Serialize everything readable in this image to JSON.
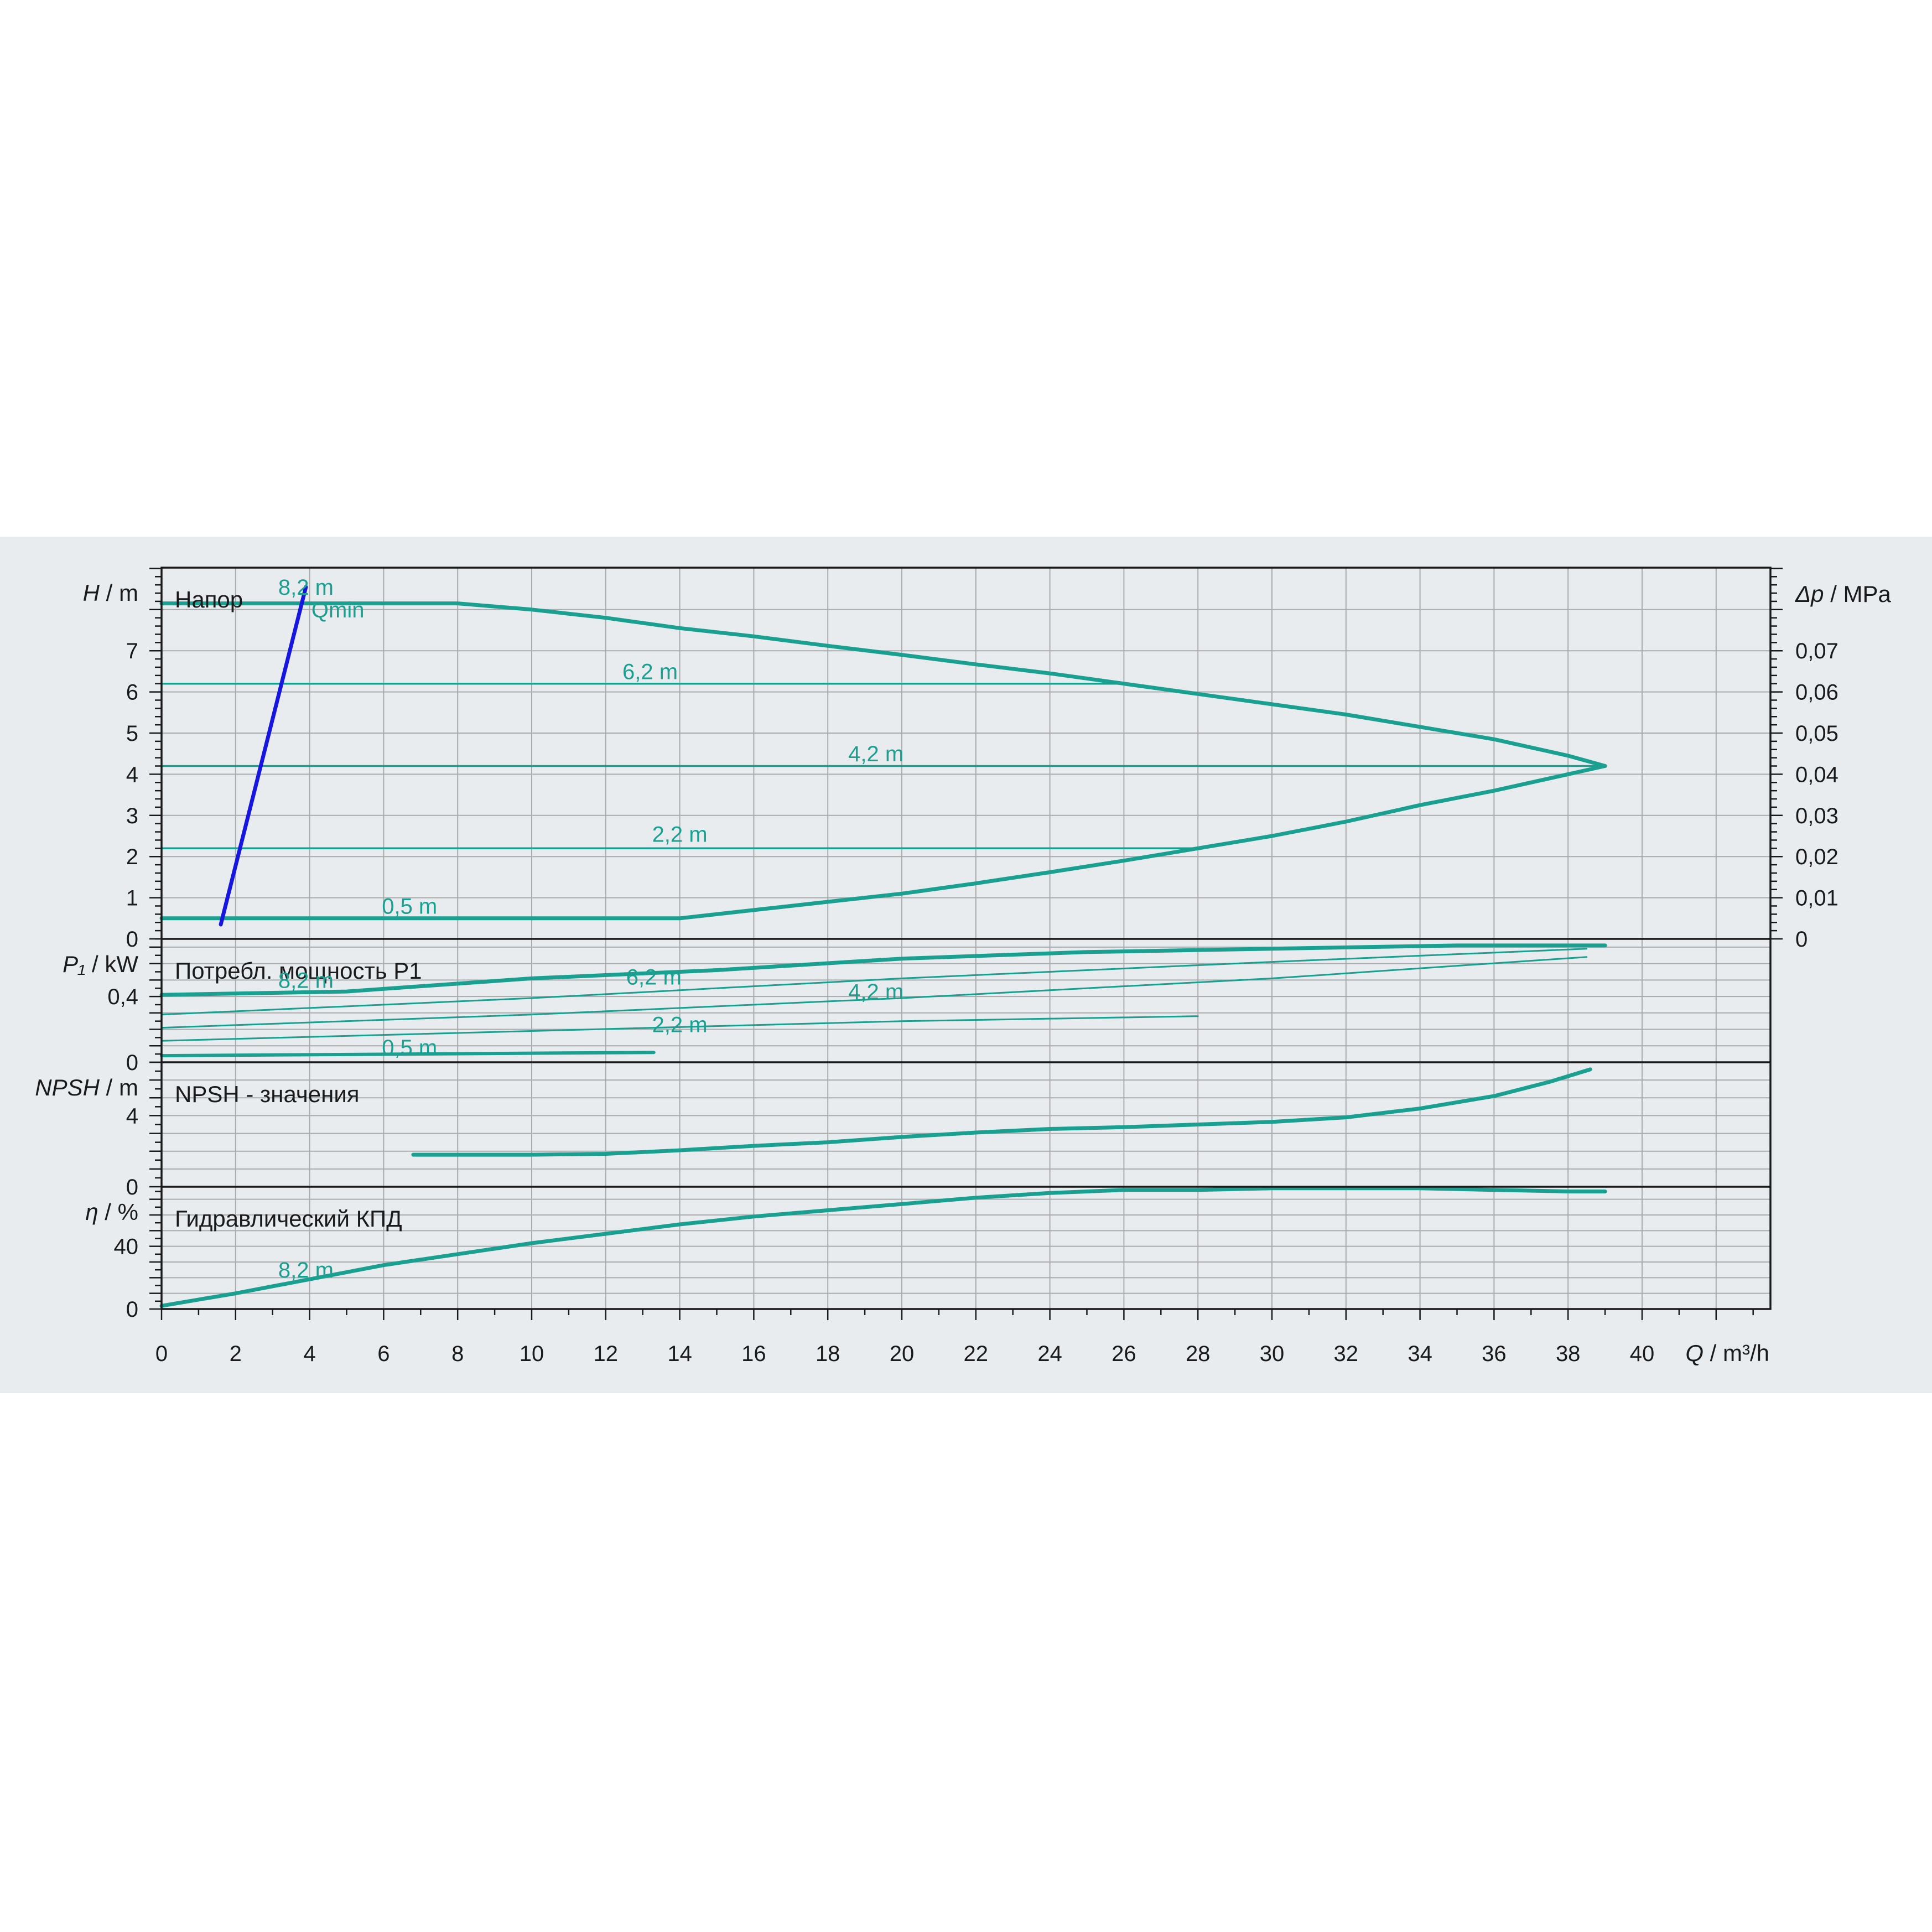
{
  "colors": {
    "curve": "#1aa091",
    "qmin": "#1616e0",
    "grid": "#a9abad",
    "frame": "#1a1a1a",
    "band": "#e9ecef"
  },
  "chart_data": {
    "type": "line",
    "x_label": {
      "sym": "Q",
      "unit": " / m³/h"
    },
    "x_range": [
      0,
      43.5
    ],
    "x_ticks": [
      "0",
      "2",
      "4",
      "6",
      "8",
      "10",
      "12",
      "14",
      "16",
      "18",
      "20",
      "22",
      "24",
      "26",
      "28",
      "30",
      "32",
      "34",
      "36",
      "38",
      "40"
    ],
    "panels": [
      {
        "id": "head",
        "title": "Напор",
        "y_label": {
          "sym": "H",
          "unit": " / m"
        },
        "y_range": [
          0,
          9
        ],
        "y_ticks": [
          "0",
          "1",
          "2",
          "3",
          "4",
          "5",
          "6",
          "7"
        ],
        "y2_label": {
          "sym": "Δp",
          "unit": " / MPa"
        },
        "y2_range": [
          0,
          0.09
        ],
        "y2_ticks": [
          "0",
          "0,01",
          "0,02",
          "0,03",
          "0,04",
          "0,05",
          "0,06",
          "0,07"
        ],
        "series": [
          {
            "name": "8,2 m",
            "width": 7,
            "points": [
              [
                0,
                8.15
              ],
              [
                8,
                8.15
              ],
              [
                10,
                8.0
              ],
              [
                12,
                7.8
              ],
              [
                14,
                7.55
              ],
              [
                16,
                7.35
              ],
              [
                18,
                7.12
              ],
              [
                20,
                6.9
              ],
              [
                22,
                6.67
              ],
              [
                24,
                6.45
              ],
              [
                26,
                6.2
              ],
              [
                28,
                5.95
              ],
              [
                30,
                5.7
              ],
              [
                32,
                5.45
              ],
              [
                34,
                5.15
              ],
              [
                36,
                4.85
              ],
              [
                38,
                4.45
              ],
              [
                39,
                4.2
              ]
            ]
          },
          {
            "name": "6,2 m",
            "width": 3.5,
            "points": [
              [
                0,
                6.2
              ],
              [
                26,
                6.2
              ]
            ]
          },
          {
            "name": "4,2 m",
            "width": 3.5,
            "points": [
              [
                0,
                4.2
              ],
              [
                39,
                4.2
              ]
            ]
          },
          {
            "name": "2,2 m",
            "width": 3.5,
            "points": [
              [
                0,
                2.2
              ],
              [
                28,
                2.2
              ]
            ]
          },
          {
            "name": "0,5 m",
            "width": 7,
            "points": [
              [
                0,
                0.5
              ],
              [
                14,
                0.5
              ],
              [
                16,
                0.7
              ],
              [
                18,
                0.9
              ],
              [
                20,
                1.1
              ],
              [
                22,
                1.35
              ],
              [
                24,
                1.62
              ],
              [
                26,
                1.9
              ],
              [
                28,
                2.2
              ],
              [
                30,
                2.5
              ],
              [
                32,
                2.85
              ],
              [
                34,
                3.25
              ],
              [
                36,
                3.6
              ],
              [
                38,
                4.0
              ],
              [
                39,
                4.2
              ]
            ]
          }
        ],
        "qmin": {
          "label": "Qmin",
          "points": [
            [
              1.6,
              0.35
            ],
            [
              3.9,
              8.55
            ]
          ]
        }
      },
      {
        "id": "power",
        "title": "Потребл. мощность P1",
        "y_label": {
          "sym": "P₁",
          "unit": " / kW"
        },
        "y_range": [
          0,
          0.75
        ],
        "y_ticks": [
          "0",
          "0,4"
        ],
        "series": [
          {
            "name": "8,2 m",
            "width": 7,
            "points": [
              [
                0,
                0.41
              ],
              [
                5,
                0.43
              ],
              [
                10,
                0.51
              ],
              [
                15,
                0.56
              ],
              [
                20,
                0.63
              ],
              [
                25,
                0.67
              ],
              [
                30,
                0.69
              ],
              [
                35,
                0.71
              ],
              [
                39,
                0.71
              ]
            ]
          },
          {
            "name": "6,2 m",
            "width": 3,
            "points": [
              [
                0,
                0.29
              ],
              [
                10,
                0.39
              ],
              [
                20,
                0.51
              ],
              [
                30,
                0.61
              ],
              [
                38.5,
                0.69
              ]
            ]
          },
          {
            "name": "4,2 m",
            "width": 3,
            "points": [
              [
                0,
                0.21
              ],
              [
                10,
                0.29
              ],
              [
                20,
                0.39
              ],
              [
                30,
                0.51
              ],
              [
                38.5,
                0.64
              ]
            ]
          },
          {
            "name": "2,2 m",
            "width": 3,
            "points": [
              [
                0,
                0.13
              ],
              [
                10,
                0.19
              ],
              [
                20,
                0.25
              ],
              [
                28,
                0.28
              ]
            ]
          },
          {
            "name": "0,5 m",
            "width": 6,
            "points": [
              [
                0,
                0.04
              ],
              [
                13.3,
                0.06
              ]
            ]
          }
        ]
      },
      {
        "id": "npsh",
        "title": "NPSH - значения",
        "y_label": {
          "sym": "NPSH",
          "unit": " / m"
        },
        "y_range": [
          0,
          7
        ],
        "y_ticks": [
          "0",
          "4"
        ],
        "series": [
          {
            "name": "",
            "width": 7,
            "points": [
              [
                6.8,
                1.8
              ],
              [
                10,
                1.8
              ],
              [
                12,
                1.85
              ],
              [
                14,
                2.05
              ],
              [
                16,
                2.3
              ],
              [
                18,
                2.5
              ],
              [
                20,
                2.8
              ],
              [
                22,
                3.05
              ],
              [
                24,
                3.25
              ],
              [
                26,
                3.35
              ],
              [
                28,
                3.5
              ],
              [
                30,
                3.65
              ],
              [
                32,
                3.9
              ],
              [
                34,
                4.4
              ],
              [
                36,
                5.1
              ],
              [
                37.5,
                5.9
              ],
              [
                38.6,
                6.6
              ]
            ]
          }
        ]
      },
      {
        "id": "eff",
        "title": "Гидравлический КПД",
        "y_label": {
          "sym": "η",
          "unit": " / %"
        },
        "y_range": [
          0,
          78
        ],
        "y_ticks": [
          "0",
          "40"
        ],
        "series": [
          {
            "name": "8,2 m",
            "width": 7,
            "points": [
              [
                0,
                2
              ],
              [
                2,
                10
              ],
              [
                4,
                19
              ],
              [
                6,
                28
              ],
              [
                8,
                35
              ],
              [
                10,
                42
              ],
              [
                12,
                48
              ],
              [
                14,
                54
              ],
              [
                16,
                59
              ],
              [
                18,
                63
              ],
              [
                20,
                67
              ],
              [
                22,
                71
              ],
              [
                24,
                74
              ],
              [
                26,
                76
              ],
              [
                28,
                76
              ],
              [
                30,
                77
              ],
              [
                32,
                77
              ],
              [
                34,
                77
              ],
              [
                36,
                76
              ],
              [
                38,
                75
              ],
              [
                39,
                75
              ]
            ]
          }
        ]
      }
    ],
    "curve_labels": [
      {
        "panel": 0,
        "text": "8,2 m",
        "x": 3.9,
        "y": 8.55
      },
      {
        "panel": 0,
        "text": "6,2 m",
        "x": 13.2,
        "y": 6.5
      },
      {
        "panel": 0,
        "text": "4,2 m",
        "x": 19.3,
        "y": 4.5
      },
      {
        "panel": 0,
        "text": "2,2 m",
        "x": 14.0,
        "y": 2.55
      },
      {
        "panel": 0,
        "text": "0,5 m",
        "x": 6.7,
        "y": 0.8
      },
      {
        "panel": 1,
        "text": "8,2 m",
        "x": 3.9,
        "y": 0.5
      },
      {
        "panel": 1,
        "text": "6,2 m",
        "x": 13.3,
        "y": 0.52
      },
      {
        "panel": 1,
        "text": "4,2 m",
        "x": 19.3,
        "y": 0.43
      },
      {
        "panel": 1,
        "text": "2,2 m",
        "x": 14.0,
        "y": 0.23
      },
      {
        "panel": 1,
        "text": "0,5 m",
        "x": 6.7,
        "y": 0.09
      },
      {
        "panel": 3,
        "text": "8,2 m",
        "x": 3.9,
        "y": 25
      }
    ]
  }
}
